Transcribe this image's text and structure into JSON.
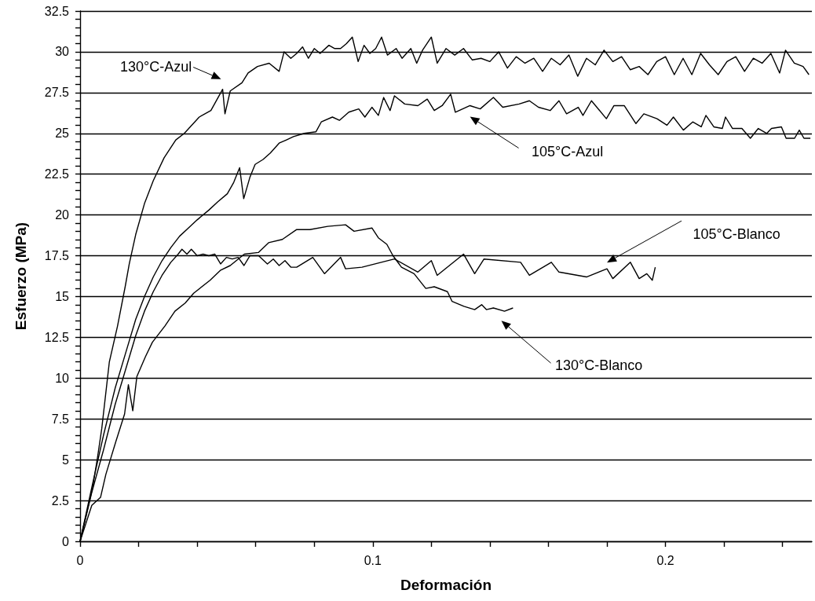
{
  "chart_data": {
    "type": "line",
    "xlabel": "Deformación",
    "ylabel": "Esfuerzo (MPa)",
    "xlim": [
      0,
      0.25
    ],
    "ylim": [
      0,
      32.5
    ],
    "xticks": [
      0,
      {
        "value": 0.02,
        "label": null
      },
      {
        "value": 0.04,
        "label": null
      },
      {
        "value": 0.06,
        "label": null
      },
      {
        "value": 0.08,
        "label": null
      },
      0.1,
      {
        "value": 0.12,
        "label": null
      },
      {
        "value": 0.14,
        "label": null
      },
      {
        "value": 0.16,
        "label": null
      },
      {
        "value": 0.18,
        "label": null
      },
      0.2,
      {
        "value": 0.22,
        "label": null
      },
      {
        "value": 0.24,
        "label": null
      }
    ],
    "yticks": [
      0,
      {
        "value": 0.5,
        "label": null
      },
      {
        "value": 1,
        "label": null
      },
      {
        "value": 1.5,
        "label": null
      },
      {
        "value": 2,
        "label": null
      },
      2.5,
      {
        "value": 3,
        "label": null
      },
      {
        "value": 3.5,
        "label": null
      },
      {
        "value": 4,
        "label": null
      },
      {
        "value": 4.5,
        "label": null
      },
      5,
      {
        "value": 5.5,
        "label": null
      },
      {
        "value": 6,
        "label": null
      },
      {
        "value": 6.5,
        "label": null
      },
      {
        "value": 7,
        "label": null
      },
      7.5,
      {
        "value": 8,
        "label": null
      },
      {
        "value": 8.5,
        "label": null
      },
      {
        "value": 9,
        "label": null
      },
      {
        "value": 9.5,
        "label": null
      },
      10,
      {
        "value": 10.5,
        "label": null
      },
      {
        "value": 11,
        "label": null
      },
      {
        "value": 11.5,
        "label": null
      },
      {
        "value": 12,
        "label": null
      },
      12.5,
      {
        "value": 13,
        "label": null
      },
      {
        "value": 13.5,
        "label": null
      },
      {
        "value": 14,
        "label": null
      },
      {
        "value": 14.5,
        "label": null
      },
      15,
      {
        "value": 15.5,
        "label": null
      },
      {
        "value": 16,
        "label": null
      },
      {
        "value": 16.5,
        "label": null
      },
      {
        "value": 17,
        "label": null
      },
      17.5,
      {
        "value": 18,
        "label": null
      },
      {
        "value": 18.5,
        "label": null
      },
      {
        "value": 19,
        "label": null
      },
      {
        "value": 19.5,
        "label": null
      },
      20,
      {
        "value": 20.5,
        "label": null
      },
      {
        "value": 21,
        "label": null
      },
      {
        "value": 21.5,
        "label": null
      },
      {
        "value": 22,
        "label": null
      },
      22.5,
      {
        "value": 23,
        "label": null
      },
      {
        "value": 23.5,
        "label": null
      },
      {
        "value": 24,
        "label": null
      },
      {
        "value": 24.5,
        "label": null
      },
      25,
      {
        "value": 25.5,
        "label": null
      },
      {
        "value": 26,
        "label": null
      },
      {
        "value": 26.5,
        "label": null
      },
      {
        "value": 27,
        "label": null
      },
      27.5,
      {
        "value": 28,
        "label": null
      },
      {
        "value": 28.5,
        "label": null
      },
      {
        "value": 29,
        "label": null
      },
      {
        "value": 29.5,
        "label": null
      },
      30,
      {
        "value": 30.5,
        "label": null
      },
      {
        "value": 31,
        "label": null
      },
      {
        "value": 31.5,
        "label": null
      },
      {
        "value": 32,
        "label": null
      },
      32.5
    ],
    "grid": "y",
    "marker": "none",
    "line_style": "solid",
    "series": [
      {
        "name": "130°C-Azul",
        "color": "#000000",
        "x": [
          0,
          0.0043,
          0.006,
          0.0074,
          0.01,
          0.0128,
          0.0154,
          0.0168,
          0.019,
          0.022,
          0.025,
          0.0287,
          0.0327,
          0.0356,
          0.0407,
          0.0447,
          0.0487,
          0.0495,
          0.0513,
          0.0553,
          0.0574,
          0.0606,
          0.0646,
          0.068,
          0.0697,
          0.072,
          0.074,
          0.076,
          0.078,
          0.08,
          0.082,
          0.085,
          0.087,
          0.089,
          0.091,
          0.093,
          0.095,
          0.097,
          0.099,
          0.101,
          0.103,
          0.105,
          0.108,
          0.11,
          0.113,
          0.115,
          0.117,
          0.12,
          0.122,
          0.125,
          0.128,
          0.131,
          0.134,
          0.137,
          0.14,
          0.143,
          0.146,
          0.149,
          0.152,
          0.155,
          0.158,
          0.161,
          0.164,
          0.167,
          0.17,
          0.173,
          0.176,
          0.179,
          0.182,
          0.185,
          0.188,
          0.191,
          0.194,
          0.197,
          0.2,
          0.203,
          0.206,
          0.209,
          0.212,
          0.215,
          0.218,
          0.221,
          0.224,
          0.227,
          0.23,
          0.233,
          0.236,
          0.239,
          0.241,
          0.244,
          0.247,
          0.249
        ],
        "values": [
          0,
          3.3,
          5.2,
          6.9,
          11,
          13.2,
          15.6,
          17,
          18.8,
          20.7,
          22.1,
          23.5,
          24.6,
          25,
          26,
          26.4,
          27.7,
          26.2,
          27.6,
          28.1,
          28.7,
          29.1,
          29.3,
          28.8,
          30,
          29.6,
          29.9,
          30.3,
          29.6,
          30.2,
          29.9,
          30.4,
          30.2,
          30.2,
          30.5,
          30.9,
          29.4,
          30.4,
          29.9,
          30.2,
          30.9,
          29.8,
          30.2,
          29.6,
          30.2,
          29.3,
          30.1,
          30.9,
          29.3,
          30.2,
          29.8,
          30.2,
          29.5,
          29.6,
          29.4,
          30,
          29,
          29.7,
          29.3,
          29.6,
          28.8,
          29.6,
          29.2,
          29.8,
          28.5,
          29.6,
          29.2,
          30.1,
          29.4,
          29.7,
          28.9,
          29.1,
          28.6,
          29.4,
          29.7,
          28.6,
          29.6,
          28.6,
          29.9,
          29.2,
          28.6,
          29.4,
          29.7,
          28.8,
          29.6,
          29.3,
          29.9,
          28.7,
          30.1,
          29.3,
          29.1,
          28.6
        ]
      },
      {
        "name": "105°C-Azul",
        "color": "#000000",
        "x": [
          0,
          0.004,
          0.008,
          0.012,
          0.016,
          0.019,
          0.022,
          0.025,
          0.028,
          0.031,
          0.034,
          0.037,
          0.04,
          0.044,
          0.047,
          0.0503,
          0.0525,
          0.0545,
          0.0559,
          0.058,
          0.0598,
          0.0625,
          0.065,
          0.068,
          0.0705,
          0.0729,
          0.0766,
          0.0806,
          0.0824,
          0.0862,
          0.0886,
          0.0918,
          0.0952,
          0.0973,
          0.0997,
          0.1019,
          0.1037,
          0.1059,
          0.1074,
          0.1109,
          0.1154,
          0.1186,
          0.121,
          0.1237,
          0.1266,
          0.1282,
          0.1332,
          0.1367,
          0.1412,
          0.1444,
          0.15,
          0.1535,
          0.1566,
          0.1606,
          0.1636,
          0.1662,
          0.1702,
          0.1718,
          0.1747,
          0.1798,
          0.1824,
          0.1859,
          0.1899,
          0.1926,
          0.1971,
          0.2005,
          0.2027,
          0.2061,
          0.2093,
          0.2122,
          0.2138,
          0.2165,
          0.2194,
          0.2205,
          0.2229,
          0.2261,
          0.229,
          0.2317,
          0.2346,
          0.2362,
          0.2396,
          0.2412,
          0.2441,
          0.2457,
          0.2473,
          0.2495
        ],
        "values": [
          0,
          3.3,
          6.5,
          9.4,
          11.8,
          13.6,
          15,
          16.2,
          17.2,
          18,
          18.7,
          19.2,
          19.7,
          20.3,
          20.8,
          21.3,
          22,
          22.9,
          21,
          22.3,
          23.1,
          23.4,
          23.8,
          24.4,
          24.6,
          24.8,
          25,
          25.1,
          25.7,
          26,
          25.8,
          26.3,
          26.5,
          26,
          26.6,
          26.1,
          27.2,
          26.4,
          27.3,
          26.8,
          26.7,
          27.1,
          26.4,
          26.7,
          27.4,
          26.3,
          26.7,
          26.5,
          27.2,
          26.6,
          26.8,
          27,
          26.6,
          26.4,
          27,
          26.2,
          26.6,
          26.1,
          27,
          25.9,
          26.7,
          26.7,
          25.6,
          26.2,
          25.9,
          25.5,
          26,
          25.2,
          25.7,
          25.4,
          26.1,
          25.4,
          25.3,
          26,
          25.3,
          25.3,
          24.7,
          25.3,
          25,
          25.3,
          25.4,
          24.7,
          24.7,
          25.2,
          24.7,
          24.7
        ]
      },
      {
        "name": "105°C-Blanco",
        "color": "#000000",
        "x": [
          0,
          0.004,
          0.008,
          0.012,
          0.016,
          0.019,
          0.022,
          0.025,
          0.028,
          0.031,
          0.0335,
          0.0348,
          0.0365,
          0.038,
          0.04,
          0.042,
          0.044,
          0.046,
          0.048,
          0.05,
          0.052,
          0.054,
          0.056,
          0.058,
          0.061,
          0.064,
          0.066,
          0.068,
          0.07,
          0.072,
          0.074,
          0.0795,
          0.0835,
          0.089,
          0.0907,
          0.0963,
          0.1074,
          0.1154,
          0.12,
          0.122,
          0.131,
          0.1348,
          0.138,
          0.1505,
          0.1535,
          0.161,
          0.1636,
          0.173,
          0.18,
          0.182,
          0.188,
          0.191,
          0.1936,
          0.1955,
          0.1965
        ],
        "values": [
          0,
          3,
          5.6,
          8.4,
          10.8,
          12.6,
          14.1,
          15.3,
          16.3,
          17.1,
          17.6,
          17.9,
          17.6,
          17.9,
          17.5,
          17.6,
          17.5,
          17.6,
          17,
          17.4,
          17.3,
          17.4,
          16.9,
          17.5,
          17.5,
          17,
          17.3,
          16.9,
          17.2,
          16.8,
          16.8,
          17.4,
          16.4,
          17.4,
          16.7,
          16.8,
          17.3,
          16.5,
          17.2,
          16.3,
          17.6,
          16.4,
          17.3,
          17.1,
          16.3,
          17.1,
          16.5,
          16.2,
          16.7,
          16.1,
          17.1,
          16.1,
          16.4,
          16,
          16.8
        ]
      },
      {
        "name": "130°C-Blanco",
        "color": "#000000",
        "x": [
          0,
          0.004,
          0.007,
          0.0088,
          0.0122,
          0.0152,
          0.0165,
          0.018,
          0.0194,
          0.0223,
          0.0247,
          0.029,
          0.0324,
          0.0359,
          0.0388,
          0.0444,
          0.0479,
          0.0513,
          0.0561,
          0.0609,
          0.0644,
          0.0691,
          0.0739,
          0.0785,
          0.0846,
          0.0907,
          0.0936,
          0.0997,
          0.1019,
          0.1048,
          0.1069,
          0.1098,
          0.1141,
          0.1181,
          0.121,
          0.1255,
          0.1271,
          0.1311,
          0.1348,
          0.1372,
          0.1388,
          0.1412,
          0.145,
          0.1479
        ],
        "values": [
          0,
          2.2,
          2.7,
          4.1,
          6.1,
          7.8,
          9.6,
          8,
          10.1,
          11.3,
          12.2,
          13.2,
          14.1,
          14.6,
          15.2,
          16,
          16.6,
          16.9,
          17.6,
          17.7,
          18.3,
          18.5,
          19.1,
          19.1,
          19.3,
          19.4,
          19,
          19.2,
          18.6,
          18.2,
          17.5,
          16.8,
          16.4,
          15.5,
          15.6,
          15.3,
          14.7,
          14.4,
          14.2,
          14.5,
          14.2,
          14.3,
          14.1,
          14.3
        ]
      }
    ]
  }
}
